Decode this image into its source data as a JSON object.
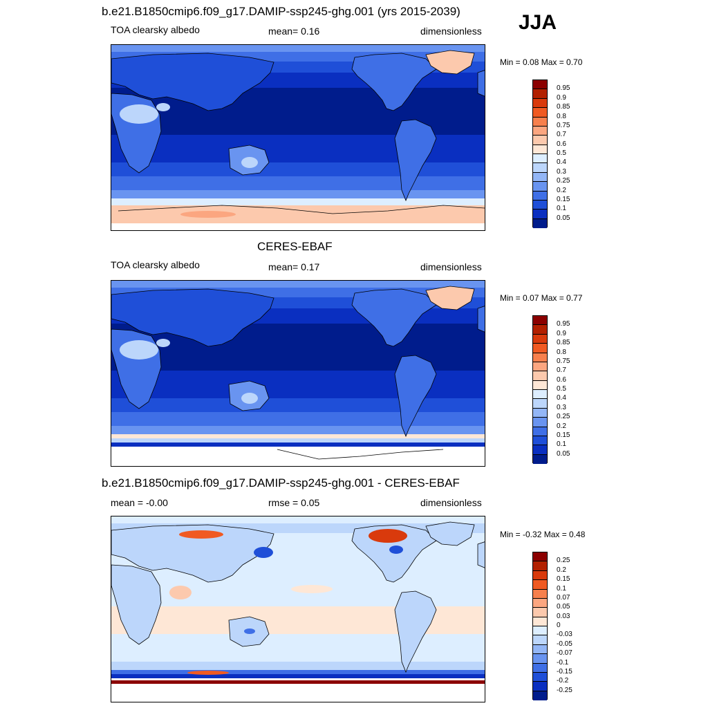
{
  "season": "JJA",
  "panels": [
    {
      "title": "b.e21.B1850cmip6.f09_g17.DAMIP-ssp245-ghg.001 (yrs 2015-2039)",
      "left_label": "TOA clearsky albedo",
      "center_label": "mean=   0.16",
      "right_label": "dimensionless",
      "minmax": "Min =   0.08 Max =   0.70",
      "palette": "albedo",
      "variant": "model"
    },
    {
      "title": "CERES-EBAF",
      "left_label": "TOA clearsky albedo",
      "center_label": "mean=   0.17",
      "right_label": "dimensionless",
      "minmax": "Min =   0.07 Max =   0.77",
      "palette": "albedo",
      "variant": "obs"
    },
    {
      "title": "b.e21.B1850cmip6.f09_g17.DAMIP-ssp245-ghg.001 - CERES-EBAF",
      "left_label": "mean =  -0.00",
      "center_label": "rmse =   0.05",
      "right_label": "dimensionless",
      "minmax": "Min =  -0.32 Max =   0.48",
      "palette": "diff",
      "variant": "diff"
    }
  ],
  "colorbars": {
    "albedo": {
      "labels": [
        "0.95",
        "0.9",
        "0.85",
        "0.8",
        "0.75",
        "0.7",
        "0.6",
        "0.5",
        "0.4",
        "0.3",
        "0.25",
        "0.2",
        "0.15",
        "0.1",
        "0.05"
      ],
      "colors": [
        "#8b0000",
        "#b22000",
        "#d93a0c",
        "#f05a22",
        "#f7804d",
        "#fba680",
        "#fcc9ad",
        "#fee7d6",
        "#ddeeff",
        "#bcd6fb",
        "#93b6f6",
        "#6994f0",
        "#3f6fe6",
        "#1f4fd8",
        "#0a2fc0",
        "#001c8c"
      ]
    },
    "diff": {
      "labels": [
        "0.25",
        "0.2",
        "0.15",
        "0.1",
        "0.07",
        "0.05",
        "0.03",
        "0",
        "-0.03",
        "-0.05",
        "-0.07",
        "-0.1",
        "-0.15",
        "-0.2",
        "-0.25"
      ],
      "colors": [
        "#8b0000",
        "#b22000",
        "#d93a0c",
        "#f05a22",
        "#f7804d",
        "#fba680",
        "#fcc9ad",
        "#fee7d6",
        "#ddeeff",
        "#bcd6fb",
        "#93b6f6",
        "#6994f0",
        "#3f6fe6",
        "#1f4fd8",
        "#0a2fc0",
        "#001c8c"
      ]
    }
  }
}
